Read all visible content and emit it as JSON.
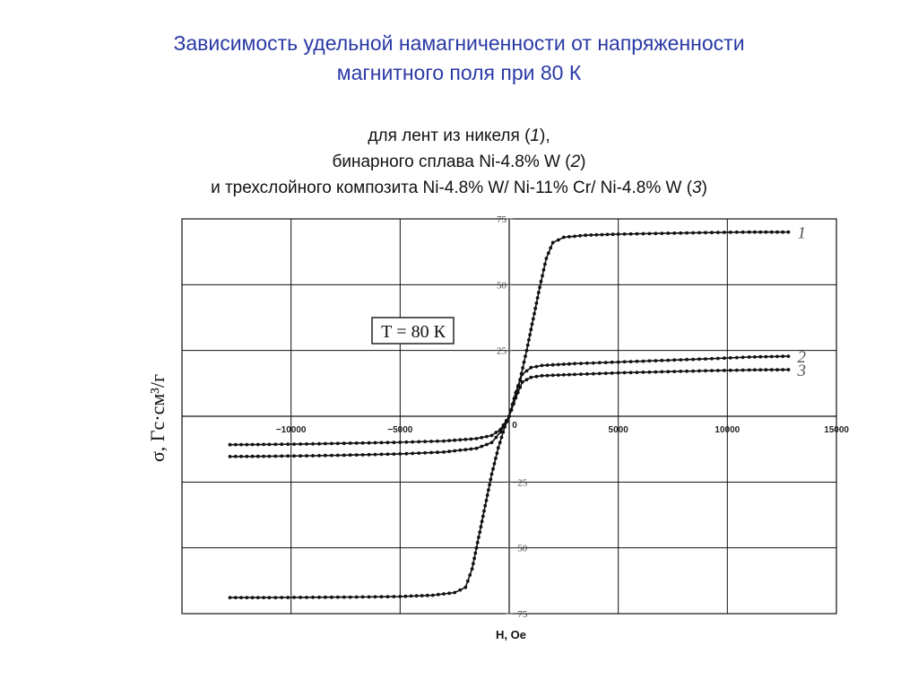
{
  "title": {
    "line1": "Зависимость удельной намагниченности от напряженности",
    "line2": "магнитного поля при 80 К"
  },
  "subtitle": {
    "l1_pre": "для лент из никеля (",
    "l1_num": "1",
    "l1_post": "),",
    "l2_pre": "бинарного сплава Ni-4.8% W (",
    "l2_num": "2",
    "l2_post": ")",
    "l3_pre": "и трехслойного композита Ni-4.8% W/ Ni-11% Cr/ Ni-4.8% W (",
    "l3_num": "3",
    "l3_post": ")"
  },
  "chart_data": {
    "type": "scatter",
    "xlabel": "H, Oe",
    "ylabel": "σ, Гс·см³/г",
    "annotation": "Т = 80 К",
    "xlim": [
      -15000,
      15000
    ],
    "ylim": [
      -75,
      75
    ],
    "x_ticks": [
      -10000,
      -5000,
      0,
      5000,
      10000,
      15000
    ],
    "y_ticks": [
      75,
      50,
      25,
      -25,
      -50,
      -75
    ],
    "x_tick_labels": [
      "−10000",
      "−5000",
      "0",
      "5000",
      "10000",
      "15000"
    ],
    "y_tick_labels": [
      "75",
      "50",
      "25",
      "−25",
      "−50",
      "−75"
    ],
    "grid": true,
    "series": [
      {
        "name": "1",
        "points": [
          [
            -12800,
            -68.9
          ],
          [
            -11000,
            -68.9
          ],
          [
            -9000,
            -68.8
          ],
          [
            -7000,
            -68.7
          ],
          [
            -5000,
            -68.5
          ],
          [
            -3500,
            -68.0
          ],
          [
            -2500,
            -67.0
          ],
          [
            -2000,
            -65.0
          ],
          [
            -1700,
            -58.0
          ],
          [
            -1400,
            -46.0
          ],
          [
            -1100,
            -34.0
          ],
          [
            -800,
            -22.0
          ],
          [
            -500,
            -12.0
          ],
          [
            -200,
            -4.0
          ],
          [
            0,
            0
          ],
          [
            200,
            5.0
          ],
          [
            500,
            14.0
          ],
          [
            800,
            25.0
          ],
          [
            1100,
            37.0
          ],
          [
            1400,
            49.0
          ],
          [
            1700,
            60.0
          ],
          [
            2000,
            66.0
          ],
          [
            2500,
            68.0
          ],
          [
            3500,
            68.8
          ],
          [
            5000,
            69.2
          ],
          [
            7000,
            69.5
          ],
          [
            9000,
            69.8
          ],
          [
            11000,
            70.0
          ],
          [
            12800,
            70.0
          ]
        ]
      },
      {
        "name": "2",
        "points": [
          [
            -12800,
            -15.3
          ],
          [
            -11000,
            -15.2
          ],
          [
            -9000,
            -15.0
          ],
          [
            -7000,
            -14.7
          ],
          [
            -5000,
            -14.3
          ],
          [
            -3000,
            -13.6
          ],
          [
            -1500,
            -12.2
          ],
          [
            -800,
            -10.0
          ],
          [
            -400,
            -6.0
          ],
          [
            0,
            0
          ],
          [
            300,
            9.0
          ],
          [
            600,
            16.0
          ],
          [
            1000,
            18.5
          ],
          [
            1500,
            19.3
          ],
          [
            3000,
            20.0
          ],
          [
            5000,
            20.6
          ],
          [
            7000,
            21.2
          ],
          [
            9000,
            21.8
          ],
          [
            11000,
            22.5
          ],
          [
            12800,
            22.8
          ]
        ]
      },
      {
        "name": "3",
        "points": [
          [
            -12800,
            -10.8
          ],
          [
            -11000,
            -10.7
          ],
          [
            -9000,
            -10.5
          ],
          [
            -7000,
            -10.2
          ],
          [
            -5000,
            -9.9
          ],
          [
            -3000,
            -9.4
          ],
          [
            -1500,
            -8.5
          ],
          [
            -800,
            -7.3
          ],
          [
            -400,
            -5.0
          ],
          [
            0,
            0
          ],
          [
            300,
            7.0
          ],
          [
            600,
            13.0
          ],
          [
            1000,
            14.8
          ],
          [
            1500,
            15.4
          ],
          [
            3000,
            15.9
          ],
          [
            5000,
            16.5
          ],
          [
            7000,
            16.9
          ],
          [
            9000,
            17.3
          ],
          [
            11000,
            17.6
          ],
          [
            12800,
            17.7
          ]
        ]
      }
    ]
  }
}
